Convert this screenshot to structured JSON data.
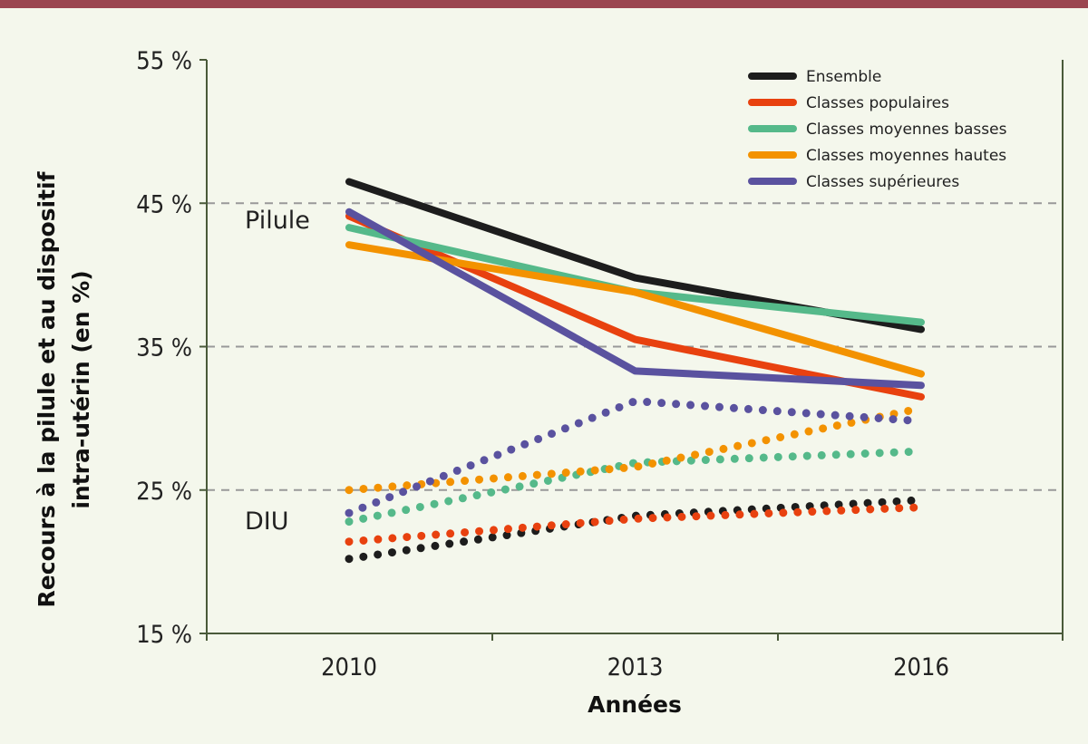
{
  "chart_data": {
    "type": "line",
    "title": "",
    "xlabel": "Années",
    "ylabel_lines": [
      "Recours à la pilule et au dispositif",
      "intra-utérin (en %)"
    ],
    "x": [
      2010,
      2013,
      2016
    ],
    "x_tick_labels": [
      "2010",
      "2013",
      "2016"
    ],
    "xlim": [
      2008.5,
      2017.5
    ],
    "ylim": [
      15,
      55
    ],
    "y_ticks": [
      15,
      25,
      35,
      45,
      55
    ],
    "y_tick_labels": [
      "15 %",
      "25 %",
      "35 %",
      "45 %",
      "55 %"
    ],
    "gridlines_y": [
      25,
      35,
      45
    ],
    "legend_position": "top-right",
    "annotations": {
      "pilule": "Pilule",
      "diu": "DIU"
    },
    "series": [
      {
        "name": "Ensemble",
        "color": "#1d1d1d",
        "pilule": [
          46.5,
          39.8,
          36.2
        ],
        "diu": [
          20.2,
          23.2,
          24.3
        ]
      },
      {
        "name": "Classes populaires",
        "color": "#e8410f",
        "pilule": [
          44.1,
          35.5,
          31.5
        ],
        "diu": [
          21.4,
          23.0,
          23.8
        ]
      },
      {
        "name": "Classes moyennes basses",
        "color": "#55b98a",
        "pilule": [
          43.3,
          38.8,
          36.7
        ],
        "diu": [
          22.8,
          26.9,
          27.7
        ]
      },
      {
        "name": "Classes moyennes hautes",
        "color": "#f39200",
        "pilule": [
          42.1,
          38.8,
          33.1
        ],
        "diu": [
          25.0,
          26.6,
          30.7
        ]
      },
      {
        "name": "Classes supérieures",
        "color": "#5a529f",
        "pilule": [
          44.4,
          33.3,
          32.3
        ],
        "diu": [
          23.4,
          31.2,
          29.8
        ]
      }
    ]
  }
}
